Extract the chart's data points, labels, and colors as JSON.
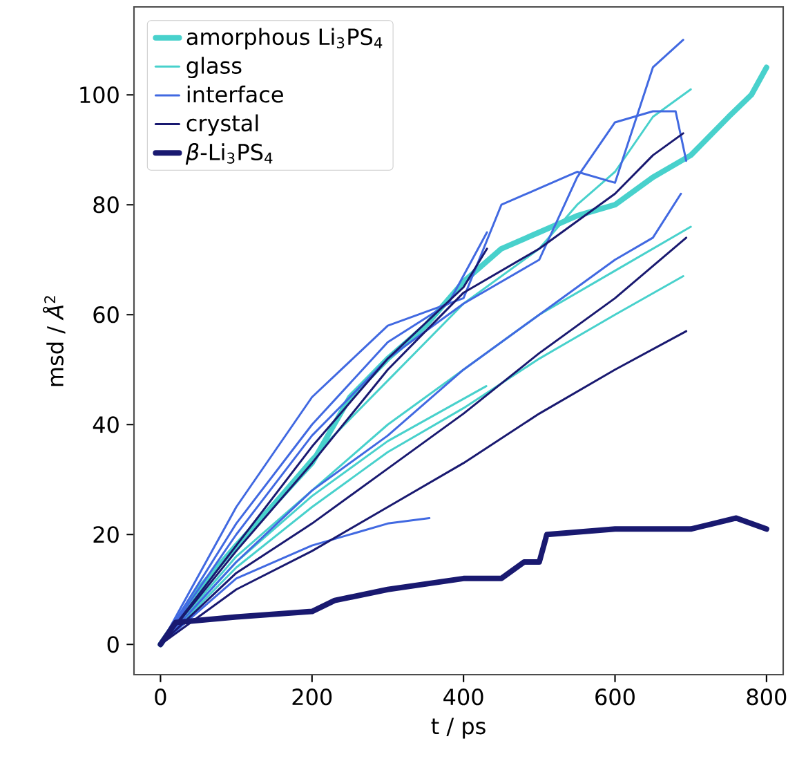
{
  "chart_data": {
    "type": "line",
    "xlabel": "t / ps",
    "ylabel": "msd / *Å*$^{2}$",
    "xlim": [
      -35,
      822
    ],
    "ylim": [
      -5.5,
      116
    ],
    "xticks": [
      0,
      200,
      400,
      600,
      800
    ],
    "yticks": [
      0,
      20,
      40,
      60,
      80,
      100
    ],
    "grid": false,
    "legend": "top left",
    "marker": "none",
    "line_style": "solid",
    "series": [
      {
        "name": "amorphous Li$_{3}$PS$_{4}$",
        "color": "#48d1cc",
        "x": [
          0,
          50,
          100,
          200,
          250,
          300,
          350,
          400,
          450,
          500,
          550,
          600,
          650,
          700,
          750,
          780,
          800
        ],
        "values": [
          0,
          10,
          18,
          33,
          45,
          52,
          58,
          66,
          72,
          75,
          78,
          80,
          85,
          89,
          96,
          100,
          105
        ]
      },
      {
        "name": "glass",
        "color": "#48d1cc",
        "x": [
          0,
          100,
          200,
          300,
          400,
          500,
          550,
          600,
          650,
          700
        ],
        "values": [
          0,
          18,
          34,
          48,
          62,
          72,
          80,
          86,
          96,
          101
        ]
      },
      {
        "color": "#48d1cc",
        "x": [
          0,
          100,
          200,
          300,
          400,
          500,
          600,
          700
        ],
        "values": [
          0,
          16,
          28,
          40,
          50,
          60,
          68,
          76
        ]
      },
      {
        "color": "#48d1cc",
        "x": [
          0,
          100,
          200,
          300,
          400,
          500,
          600,
          690
        ],
        "values": [
          0,
          14,
          25,
          35,
          43,
          52,
          60,
          67
        ]
      },
      {
        "color": "#48d1cc",
        "x": [
          0,
          100,
          200,
          300,
          430
        ],
        "values": [
          0,
          15,
          27,
          37,
          47
        ]
      },
      {
        "name": "interface",
        "color": "#4169e1",
        "x": [
          0,
          100,
          200,
          300,
          400,
          450,
          500,
          550,
          600,
          650,
          690
        ],
        "values": [
          0,
          25,
          45,
          58,
          63,
          80,
          83,
          86,
          84,
          105,
          110
        ]
      },
      {
        "color": "#4169e1",
        "x": [
          0,
          100,
          200,
          300,
          400,
          500,
          550,
          600,
          650,
          680,
          694
        ],
        "values": [
          0,
          20,
          38,
          52,
          62,
          70,
          85,
          95,
          97,
          97,
          88
        ]
      },
      {
        "color": "#4169e1",
        "x": [
          0,
          100,
          200,
          300,
          400,
          500,
          600,
          650,
          687
        ],
        "values": [
          0,
          15,
          28,
          38,
          50,
          60,
          70,
          74,
          82
        ]
      },
      {
        "color": "#4169e1",
        "x": [
          0,
          100,
          200,
          300,
          380,
          431
        ],
        "values": [
          0,
          22,
          40,
          55,
          62,
          75
        ]
      },
      {
        "color": "#4169e1",
        "x": [
          0,
          100,
          200,
          300,
          355
        ],
        "values": [
          0,
          12,
          18,
          22,
          23
        ]
      },
      {
        "name": "crystal",
        "color": "#191970",
        "x": [
          0,
          100,
          200,
          300,
          400,
          500,
          600,
          650,
          690
        ],
        "values": [
          0,
          17,
          33,
          50,
          64,
          72,
          82,
          89,
          93
        ]
      },
      {
        "color": "#191970",
        "x": [
          0,
          100,
          200,
          300,
          400,
          500,
          600,
          694
        ],
        "values": [
          0,
          13,
          22,
          32,
          42,
          53,
          63,
          74
        ]
      },
      {
        "color": "#191970",
        "x": [
          0,
          100,
          200,
          300,
          400,
          500,
          600,
          694
        ],
        "values": [
          0,
          10,
          17,
          25,
          33,
          42,
          50,
          57
        ]
      },
      {
        "color": "#191970",
        "x": [
          0,
          100,
          200,
          300,
          400,
          431
        ],
        "values": [
          0,
          18,
          36,
          52,
          65,
          72
        ]
      },
      {
        "name": "*β*-Li$_{3}$PS$_{4}$",
        "color": "#191970",
        "x": [
          0,
          20,
          100,
          200,
          230,
          300,
          400,
          450,
          480,
          500,
          510,
          600,
          700,
          760,
          800
        ],
        "values": [
          0,
          4,
          5,
          6,
          8,
          10,
          12,
          12,
          15,
          15,
          20,
          21,
          21,
          23,
          21
        ]
      }
    ]
  }
}
